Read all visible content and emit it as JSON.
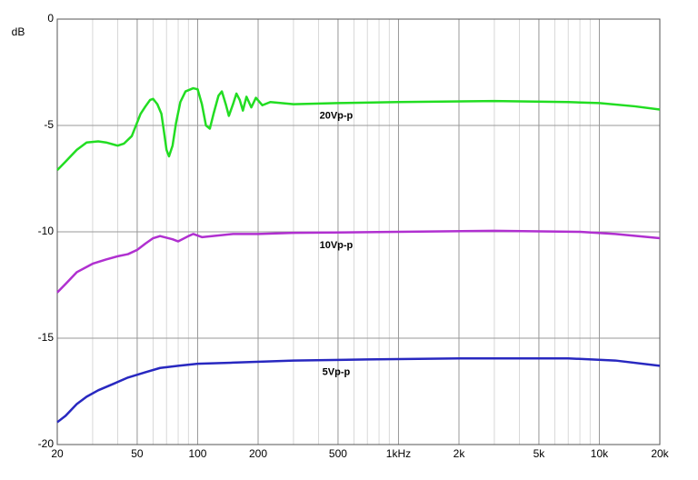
{
  "chart_data": {
    "type": "line",
    "y_label": "dB",
    "xscale": "log",
    "grid": true,
    "xlim": [
      20,
      20000
    ],
    "ylim": [
      -20,
      0
    ],
    "xticks": [
      20,
      50,
      100,
      200,
      500,
      {
        "value": 1000,
        "label": "1kHz"
      },
      {
        "value": 2000,
        "label": "2k"
      },
      {
        "value": 5000,
        "label": "5k"
      },
      {
        "value": 10000,
        "label": "10k"
      },
      {
        "value": 20000,
        "label": "20k"
      }
    ],
    "yticks": [
      0,
      -5,
      -10,
      -15,
      -20
    ],
    "series": [
      {
        "name": "20Vp-p",
        "color": "#22dd22",
        "x": [
          20,
          22,
          25,
          28,
          32,
          35,
          40,
          43,
          47,
          52,
          55,
          58,
          60,
          63,
          66,
          68,
          70,
          72,
          75,
          78,
          82,
          87,
          95,
          100,
          105,
          110,
          115,
          120,
          127,
          132,
          138,
          143,
          150,
          156,
          162,
          168,
          175,
          185,
          195,
          210,
          230,
          300,
          500,
          1000,
          3000,
          7000,
          10000,
          15000,
          20000
        ],
        "values": [
          -7.1,
          -6.7,
          -6.15,
          -5.8,
          -5.75,
          -5.8,
          -5.95,
          -5.85,
          -5.5,
          -4.45,
          -4.1,
          -3.8,
          -3.75,
          -4.0,
          -4.45,
          -5.3,
          -6.15,
          -6.45,
          -5.95,
          -4.9,
          -3.9,
          -3.4,
          -3.25,
          -3.3,
          -4.0,
          -5.0,
          -5.15,
          -4.45,
          -3.6,
          -3.4,
          -4.0,
          -4.55,
          -4.0,
          -3.5,
          -3.8,
          -4.3,
          -3.65,
          -4.15,
          -3.7,
          -4.05,
          -3.9,
          -4.0,
          -3.95,
          -3.9,
          -3.85,
          -3.9,
          -3.95,
          -4.1,
          -4.25
        ]
      },
      {
        "name": "10Vp-p",
        "color": "#b030d0",
        "x": [
          20,
          22,
          25,
          30,
          35,
          40,
          45,
          50,
          55,
          60,
          65,
          75,
          80,
          90,
          95,
          105,
          150,
          200,
          300,
          1000,
          3000,
          8000,
          12000,
          20000
        ],
        "values": [
          -12.85,
          -12.45,
          -11.9,
          -11.5,
          -11.3,
          -11.15,
          -11.05,
          -10.85,
          -10.55,
          -10.3,
          -10.2,
          -10.35,
          -10.45,
          -10.2,
          -10.1,
          -10.25,
          -10.1,
          -10.1,
          -10.05,
          -10.0,
          -9.95,
          -10.0,
          -10.1,
          -10.3
        ]
      },
      {
        "name": "5Vp-p",
        "color": "#2828c0",
        "x": [
          20,
          22,
          25,
          28,
          32,
          38,
          45,
          55,
          65,
          80,
          100,
          150,
          300,
          700,
          2000,
          7000,
          12000,
          20000
        ],
        "values": [
          -18.95,
          -18.65,
          -18.1,
          -17.75,
          -17.45,
          -17.15,
          -16.85,
          -16.6,
          -16.4,
          -16.3,
          -16.2,
          -16.15,
          -16.05,
          -16.0,
          -15.95,
          -15.95,
          -16.05,
          -16.3
        ]
      }
    ]
  }
}
